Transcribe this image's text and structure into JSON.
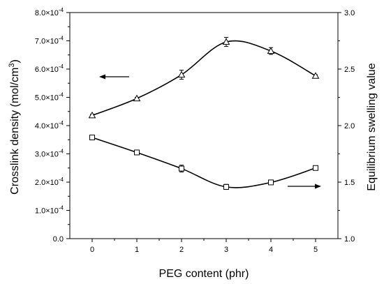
{
  "chart_data": {
    "type": "scatter",
    "x": [
      0,
      1,
      2,
      3,
      4,
      5
    ],
    "xlabel": "PEG content (phr)",
    "xlim": [
      -0.5,
      5.5
    ],
    "xticks": [
      "0",
      "1",
      "2",
      "3",
      "4",
      "5"
    ],
    "ylabel": "Crosslink density (mol/cm",
    "ylabel_sup": "3",
    "ylabel_end": ")",
    "ylim": [
      0,
      0.0008
    ],
    "yticks": [
      {
        "value": 0,
        "label": "0.0"
      },
      {
        "value": 0.0001,
        "label": "1.0×10",
        "exp": "-4"
      },
      {
        "value": 0.0002,
        "label": "2.0×10",
        "exp": "-4"
      },
      {
        "value": 0.0003,
        "label": "3.0×10",
        "exp": "-4"
      },
      {
        "value": 0.0004,
        "label": "4.0×10",
        "exp": "-4"
      },
      {
        "value": 0.0005,
        "label": "5.0×10",
        "exp": "-4"
      },
      {
        "value": 0.0006,
        "label": "6.0×10",
        "exp": "-4"
      },
      {
        "value": 0.0007,
        "label": "7.0×10",
        "exp": "-4"
      },
      {
        "value": 0.0008,
        "label": "8.0×10",
        "exp": "-4"
      }
    ],
    "y2label": "Equilibrium swelling value",
    "y2lim": [
      1.0,
      3.0
    ],
    "y2ticks": [
      "1.0",
      "1.5",
      "2.0",
      "2.5",
      "3.0"
    ],
    "grid": false,
    "series": [
      {
        "axis": "left",
        "marker": "square",
        "values": [
          0.000358,
          0.000305,
          0.000248,
          0.000183,
          0.000199,
          0.00025
        ],
        "errors": [
          5e-06,
          4e-06,
          1.2e-05,
          9e-06,
          5e-06,
          5e-06
        ],
        "arrow": "right"
      },
      {
        "axis": "right",
        "marker": "triangle",
        "values": [
          2.09,
          2.24,
          2.45,
          2.74,
          2.66,
          2.44
        ],
        "errors": [
          0.01,
          0.01,
          0.04,
          0.04,
          0.03,
          0.01
        ],
        "arrow": "left"
      }
    ]
  }
}
